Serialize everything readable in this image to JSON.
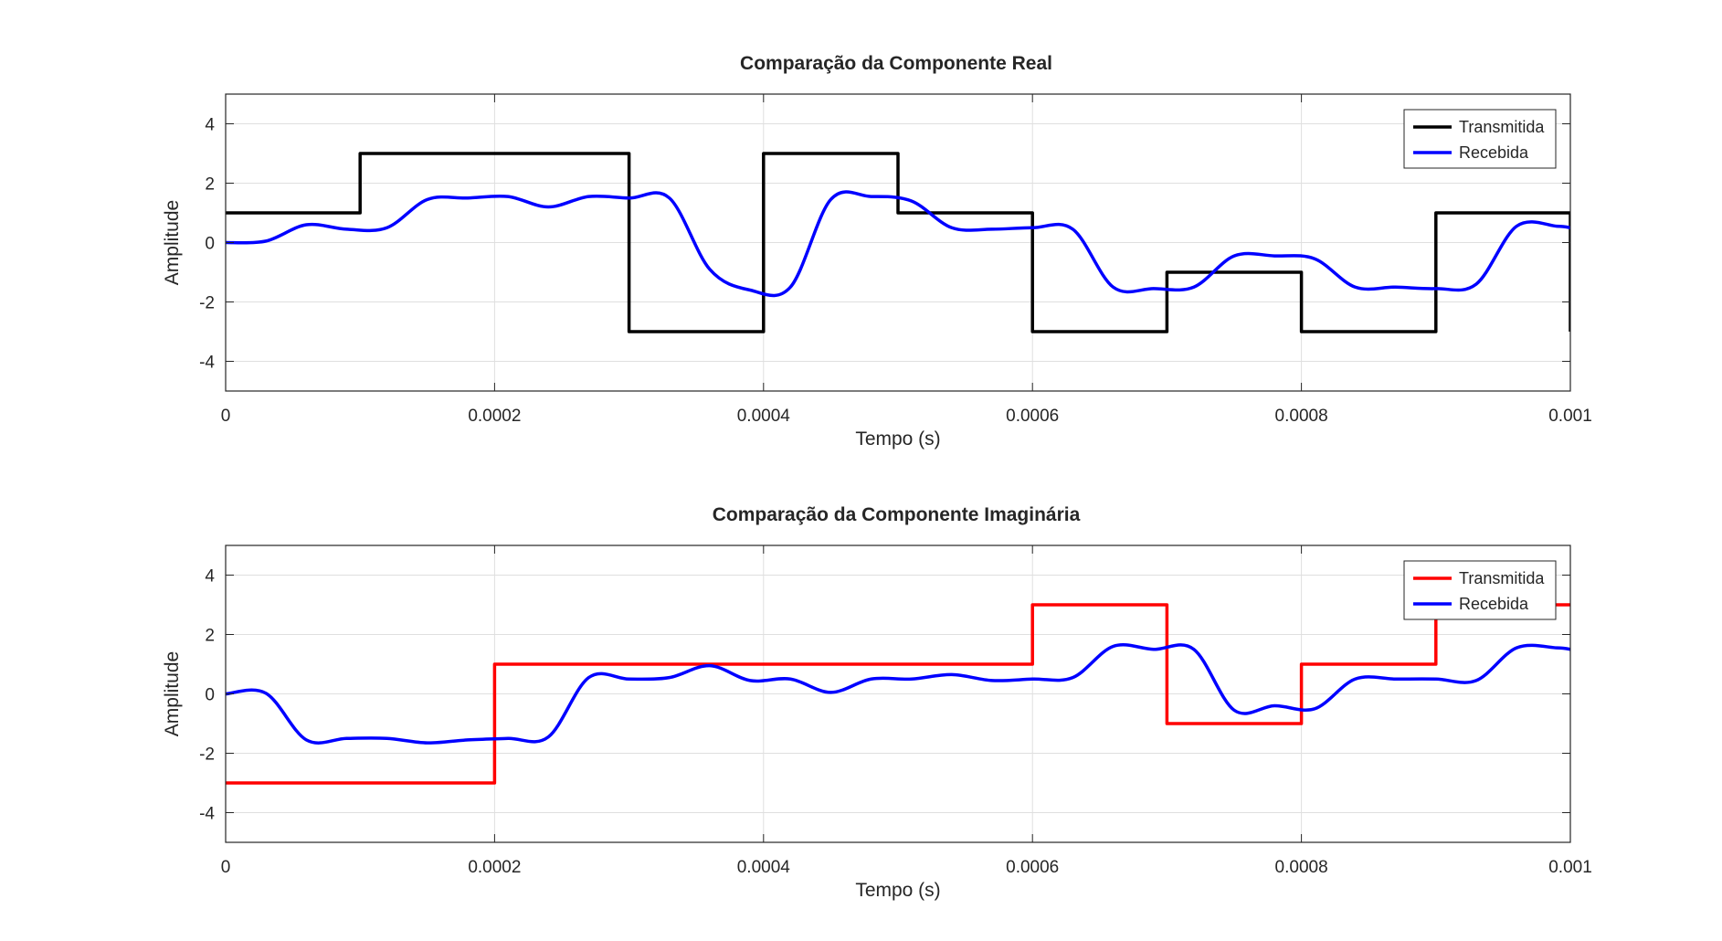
{
  "chart_data": [
    {
      "type": "line",
      "title": "Comparação da Componente Real",
      "xlabel": "Tempo (s)",
      "ylabel": "Amplitude",
      "xlim": [
        0,
        0.001
      ],
      "ylim": [
        -5,
        5
      ],
      "xticks": [
        0,
        0.0002,
        0.0004,
        0.0006,
        0.0008,
        0.001
      ],
      "xtick_labels": [
        "0",
        "0.0002",
        "0.0004",
        "0.0006",
        "0.0008",
        "0.001"
      ],
      "yticks": [
        -4,
        -2,
        0,
        2,
        4
      ],
      "ytick_labels": [
        "-4",
        "-2",
        "0",
        "2",
        "4"
      ],
      "grid": true,
      "legend_position": "top-right",
      "series": [
        {
          "name": "Transmitida",
          "color": "#000000",
          "step": true,
          "x": [
            0,
            0.0001,
            0.0002,
            0.0003,
            0.0004,
            0.0005,
            0.0006,
            0.0007,
            0.0008,
            0.0009,
            0.001
          ],
          "y": [
            1,
            3,
            3,
            -3,
            3,
            1,
            -3,
            -1,
            -3,
            1,
            -3
          ]
        },
        {
          "name": "Recebida",
          "color": "#0000ff",
          "step": false,
          "x": [
            0,
            3e-05,
            6e-05,
            9e-05,
            0.00012,
            0.00015,
            0.00018,
            0.00021,
            0.00024,
            0.00027,
            0.0003,
            0.00033,
            0.00036,
            0.00039,
            0.00042,
            0.00045,
            0.00048,
            0.00051,
            0.00054,
            0.00057,
            0.0006,
            0.00063,
            0.00066,
            0.00069,
            0.00072,
            0.00075,
            0.00078,
            0.00081,
            0.00084,
            0.00087,
            0.0009,
            0.00093,
            0.00096,
            0.00099,
            0.001
          ],
          "y": [
            0,
            0.05,
            0.6,
            0.45,
            0.5,
            1.45,
            1.5,
            1.55,
            1.2,
            1.55,
            1.5,
            1.5,
            -0.9,
            -1.6,
            -1.5,
            1.45,
            1.55,
            1.4,
            0.5,
            0.45,
            0.5,
            0.45,
            -1.5,
            -1.55,
            -1.5,
            -0.45,
            -0.45,
            -0.55,
            -1.5,
            -1.5,
            -1.55,
            -1.4,
            0.55,
            0.55,
            0.5
          ]
        }
      ]
    },
    {
      "type": "line",
      "title": "Comparação da Componente Imaginária",
      "xlabel": "Tempo (s)",
      "ylabel": "Amplitude",
      "xlim": [
        0,
        0.001
      ],
      "ylim": [
        -5,
        5
      ],
      "xticks": [
        0,
        0.0002,
        0.0004,
        0.0006,
        0.0008,
        0.001
      ],
      "xtick_labels": [
        "0",
        "0.0002",
        "0.0004",
        "0.0006",
        "0.0008",
        "0.001"
      ],
      "yticks": [
        -4,
        -2,
        0,
        2,
        4
      ],
      "ytick_labels": [
        "-4",
        "-2",
        "0",
        "2",
        "4"
      ],
      "grid": true,
      "legend_position": "top-right",
      "series": [
        {
          "name": "Transmitida",
          "color": "#ff0000",
          "step": true,
          "x": [
            0,
            0.0001,
            0.0002,
            0.0003,
            0.0004,
            0.0005,
            0.0006,
            0.0007,
            0.0008,
            0.0009,
            0.001
          ],
          "y": [
            -3,
            -3,
            1,
            1,
            1,
            1,
            3,
            -1,
            1,
            3,
            3
          ]
        },
        {
          "name": "Recebida",
          "color": "#0000ff",
          "step": false,
          "x": [
            0,
            3e-05,
            6e-05,
            9e-05,
            0.00012,
            0.00015,
            0.00018,
            0.00021,
            0.00024,
            0.00027,
            0.0003,
            0.00033,
            0.00036,
            0.00039,
            0.00042,
            0.00045,
            0.00048,
            0.00051,
            0.00054,
            0.00057,
            0.0006,
            0.00063,
            0.00066,
            0.00069,
            0.00072,
            0.00075,
            0.00078,
            0.00081,
            0.00084,
            0.00087,
            0.0009,
            0.00093,
            0.00096,
            0.00099,
            0.001
          ],
          "y": [
            0,
            0.02,
            -1.55,
            -1.5,
            -1.5,
            -1.65,
            -1.55,
            -1.5,
            -1.45,
            0.55,
            0.5,
            0.55,
            0.95,
            0.45,
            0.5,
            0.05,
            0.5,
            0.5,
            0.65,
            0.45,
            0.5,
            0.55,
            1.6,
            1.5,
            1.5,
            -0.55,
            -0.4,
            -0.5,
            0.5,
            0.5,
            0.5,
            0.45,
            1.55,
            1.55,
            1.5
          ]
        }
      ]
    }
  ]
}
